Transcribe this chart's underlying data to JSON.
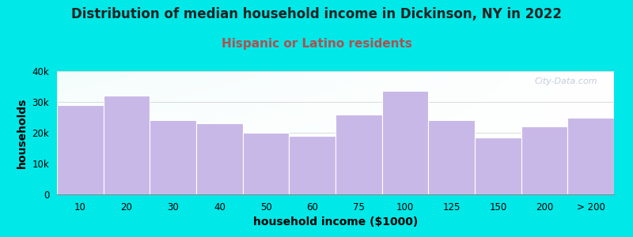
{
  "title": "Distribution of median household income in Dickinson, NY in 2022",
  "subtitle": "Hispanic or Latino residents",
  "xlabel": "household income ($1000)",
  "ylabel": "households",
  "categories": [
    "10",
    "20",
    "30",
    "40",
    "50",
    "60",
    "75",
    "100",
    "125",
    "150",
    "200",
    "> 200"
  ],
  "values": [
    29000,
    32000,
    24000,
    23000,
    20000,
    19000,
    26000,
    33500,
    24000,
    18500,
    22000,
    25000
  ],
  "bar_color": "#c8b8e8",
  "bar_edge_color": "#b8a8d8",
  "background_color": "#00e8e8",
  "plot_bg_top_left": "#dff5e8",
  "plot_bg_right": "#f5f5f8",
  "title_fontsize": 12,
  "subtitle_fontsize": 11,
  "subtitle_color": "#b05050",
  "axis_label_fontsize": 10,
  "tick_fontsize": 8.5,
  "ylim": [
    0,
    40000
  ],
  "yticks": [
    0,
    10000,
    20000,
    30000,
    40000
  ],
  "ytick_labels": [
    "0",
    "10k",
    "20k",
    "30k",
    "40k"
  ],
  "watermark": "City-Data.com"
}
